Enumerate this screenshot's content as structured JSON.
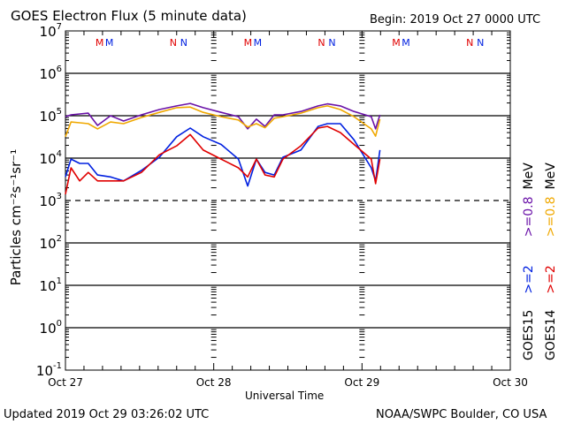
{
  "chart_data": {
    "type": "line",
    "title": "GOES Electron Flux (5 minute data)",
    "begin_label": "Begin: 2019 Oct 27 0000 UTC",
    "xlabel": "Universal Time",
    "ylabel": "Particles cm⁻²s⁻¹sr⁻¹",
    "yscale": "log",
    "ylim": [
      0.1,
      10000000
    ],
    "xlim_hours": [
      0,
      72
    ],
    "x_tick_labels": [
      "Oct 27",
      "Oct 28",
      "Oct 29",
      "Oct 30"
    ],
    "y_ticks": [
      {
        "base": "10",
        "exp": "7"
      },
      {
        "base": "10",
        "exp": "6"
      },
      {
        "base": "10",
        "exp": "5"
      },
      {
        "base": "10",
        "exp": "4"
      },
      {
        "base": "10",
        "exp": "3"
      },
      {
        "base": "10",
        "exp": "2"
      },
      {
        "base": "10",
        "exp": "1"
      },
      {
        "base": "10",
        "exp": "0"
      },
      {
        "base": "10",
        "exp": "-1"
      }
    ],
    "threshold": 1000,
    "day_markers": [
      {
        "label": "M",
        "color": "#e00000"
      },
      {
        "label": "M",
        "color": "#0020e0"
      },
      {
        "label": "N",
        "color": "#e00000"
      },
      {
        "label": "N",
        "color": "#0020e0"
      }
    ],
    "x_hours": [
      0,
      0.9,
      2.3,
      3.7,
      5.2,
      7.3,
      9.4,
      12.3,
      15.2,
      18,
      20.2,
      22.3,
      25.2,
      28,
      29.5,
      30.9,
      32.3,
      33.8,
      35.2,
      38.1,
      40.9,
      42.4,
      44.5,
      46.7,
      49.5,
      50.2,
      50.9
    ],
    "series": [
      {
        "name": "GOES15 >=0.8 MeV",
        "satellite": "GOES15",
        "energy": ">=0.8",
        "color": "#6a12a8",
        "values": [
          95000,
          105000,
          110000,
          115000,
          59000,
          100000,
          75000,
          105000,
          140000,
          170000,
          195000,
          155000,
          120000,
          95000,
          49000,
          83000,
          56000,
          105000,
          105000,
          126000,
          170000,
          190000,
          170000,
          126000,
          95000,
          49000,
          105000
        ]
      },
      {
        "name": "GOES14 >=0.8 MeV",
        "satellite": "GOES14",
        "energy": ">=0.8",
        "color": "#f0a800",
        "values": [
          32000,
          71000,
          68000,
          65000,
          49000,
          71000,
          65000,
          91000,
          120000,
          155000,
          160000,
          120000,
          95000,
          79000,
          54000,
          65000,
          52000,
          87000,
          95000,
          115000,
          155000,
          170000,
          140000,
          95000,
          49000,
          33000,
          83000
        ]
      },
      {
        "name": "GOES15 >=2 MeV",
        "satellite": "GOES15",
        "energy": ">=2",
        "color": "#0020e0",
        "values": [
          3600,
          9500,
          7500,
          7500,
          4000,
          3600,
          2900,
          5100,
          10500,
          32000,
          51000,
          32000,
          21000,
          9500,
          2200,
          9500,
          4600,
          4000,
          10500,
          15500,
          56000,
          65000,
          65000,
          27000,
          5900,
          2900,
          15500
        ]
      },
      {
        "name": "GOES14 >=2 MeV",
        "satellite": "GOES14",
        "energy": ">=2",
        "color": "#e00000",
        "values": [
          1400,
          5900,
          2900,
          4600,
          2900,
          2900,
          2900,
          4600,
          12000,
          19500,
          36000,
          15500,
          9500,
          5900,
          3600,
          9500,
          4000,
          3600,
          9500,
          19500,
          51000,
          56000,
          40000,
          21000,
          9500,
          2500,
          9500
        ]
      }
    ],
    "legend": {
      "unit": "MeV",
      "placement": "right-vertical"
    }
  },
  "footer": {
    "updated": "Updated 2019 Oct 29 03:26:02 UTC",
    "credit": "NOAA/SWPC Boulder, CO USA"
  }
}
